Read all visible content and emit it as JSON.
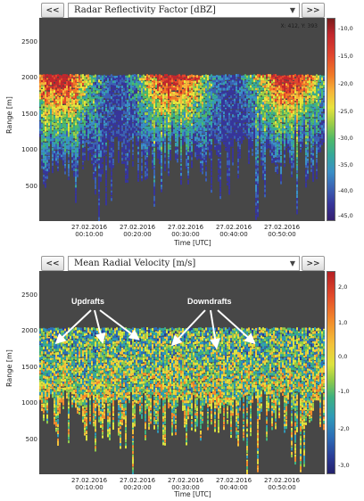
{
  "top_panel": {
    "prev_label": "<<",
    "next_label": ">>",
    "selector_value": "Radar Reflectivity Factor [dBZ]",
    "readout": "X: 412, Y: 393",
    "y_label": "Range [m]",
    "y_ticks": [
      "2500",
      "2000",
      "1500",
      "1000",
      "500"
    ],
    "x_label": "Time [UTC]",
    "x_ticks": [
      {
        "date": "27.02.2016",
        "time": "00:10:00"
      },
      {
        "date": "27.02.2016",
        "time": "00:20:00"
      },
      {
        "date": "27.02.2016",
        "time": "00:30:00"
      },
      {
        "date": "27.02.2016",
        "time": "00:40:00"
      },
      {
        "date": "27.02.2016",
        "time": "00:50:00"
      }
    ],
    "colorbar_ticks": [
      "-10,0",
      "-15,0",
      "-20,0",
      "-25,0",
      "-30,0",
      "-35,0",
      "-40,0",
      "-45,0"
    ]
  },
  "bottom_panel": {
    "prev_label": "<<",
    "next_label": ">>",
    "selector_value": "Mean Radial Velocity [m/s]",
    "y_label": "Range [m]",
    "y_ticks": [
      "2500",
      "2000",
      "1500",
      "1000",
      "500"
    ],
    "x_label": "Time [UTC]",
    "x_ticks": [
      {
        "date": "27.02.2016",
        "time": "00:10:00"
      },
      {
        "date": "27.02.2016",
        "time": "00:20:00"
      },
      {
        "date": "27.02.2016",
        "time": "00:30:00"
      },
      {
        "date": "27.02.2016",
        "time": "00:40:00"
      },
      {
        "date": "27.02.2016",
        "time": "00:50:00"
      }
    ],
    "colorbar_ticks": [
      "2,0",
      "1,0",
      "0,0",
      "-1,0",
      "-2,0",
      "-3,0"
    ],
    "annotations": {
      "updrafts": "Updrafts",
      "downdrafts": "Downdrafts"
    }
  },
  "colors": {
    "plot_background": "#474747",
    "annotation": "#ffffff"
  }
}
